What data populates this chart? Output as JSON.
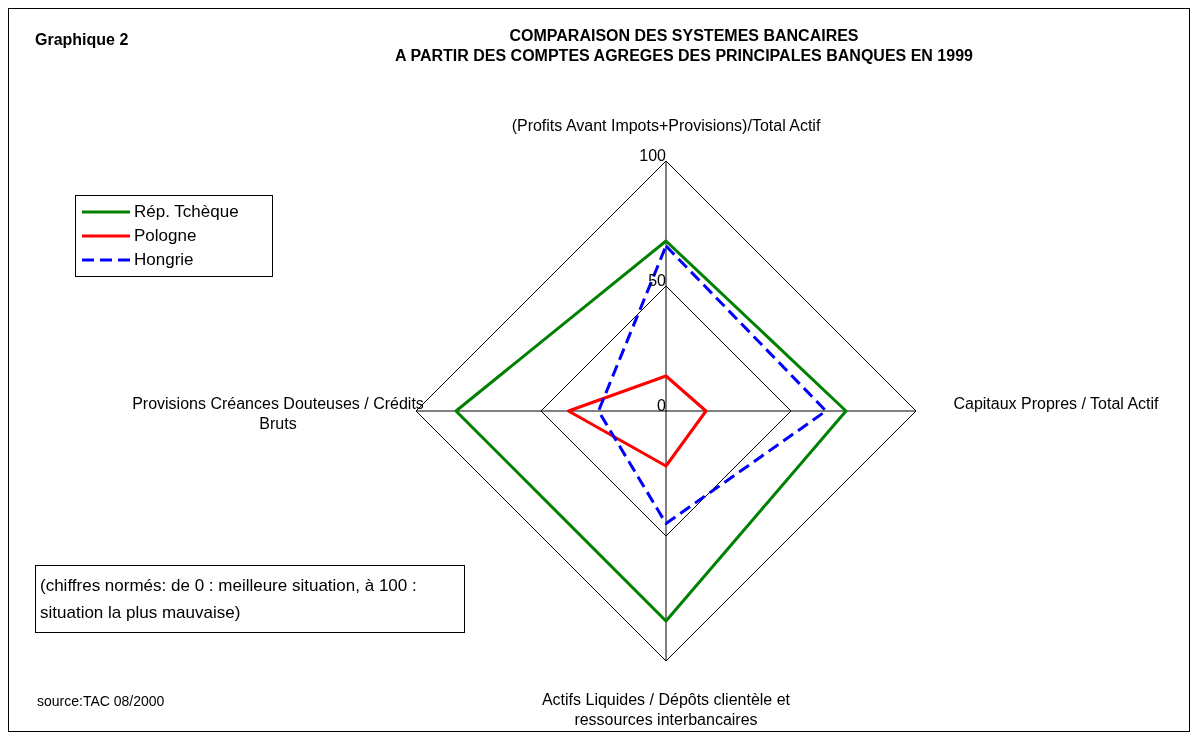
{
  "chart_data": {
    "type": "radar",
    "title": "COMPARAISON DES SYSTEMES BANCAIRES",
    "subtitle": "A PARTIR DES COMPTES AGREGES DES PRINCIPALES BANQUES EN 1999",
    "categories": [
      "(Profits Avant Impots+Provisions)/Total Actif",
      "Capitaux Propres / Total Actif",
      "Actifs Liquides / Dépôts clientèle et ressources interbancaires",
      "Provisions Créances Douteuses / Crédits Bruts"
    ],
    "series": [
      {
        "name": "Rép. Tchèque",
        "color": "#008000",
        "values": [
          68,
          72,
          84,
          84
        ],
        "line_style": "solid"
      },
      {
        "name": "Pologne",
        "color": "#ff0000",
        "values": [
          14,
          16,
          22,
          39
        ],
        "line_style": "solid"
      },
      {
        "name": "Hongrie",
        "color": "#0000ff",
        "values": [
          66,
          64,
          45,
          27
        ],
        "line_style": "dashed"
      }
    ],
    "ylim": [
      0,
      100
    ],
    "yticks": [
      0,
      50,
      100
    ],
    "grid": true,
    "legend": "top left",
    "marker": "none",
    "annotations": [
      "Graphique 2",
      "(chiffres normés: de 0 : meilleure situation, à 100 : situation la plus mauvaise)",
      "source:TAC 08/2000"
    ]
  }
}
